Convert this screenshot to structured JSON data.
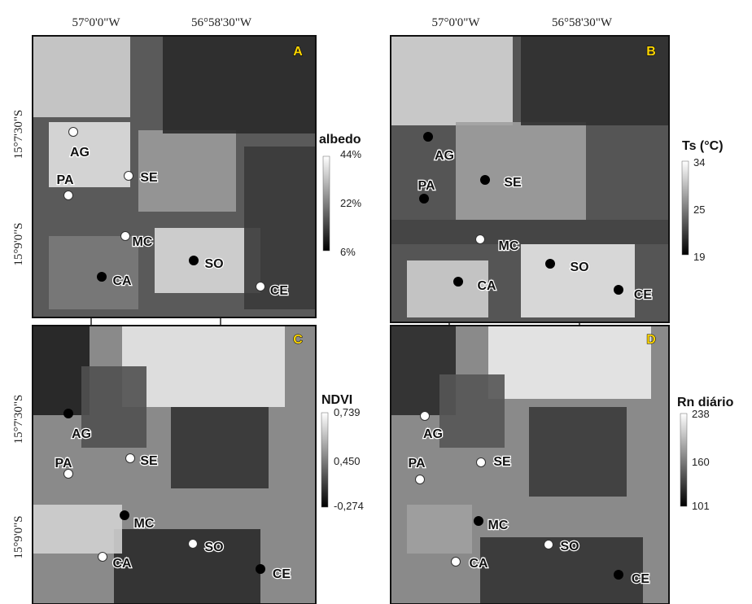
{
  "top_left_longitudes": [
    "57°0'0\"W",
    "56°58'30\"W"
  ],
  "top_right_longitudes": [
    "57°0'0\"W",
    "56°58'30\"W"
  ],
  "upper_latitudes": [
    "15°7'30\"S",
    "15°9'0\"S"
  ],
  "lower_latitudes": [
    "15°7'30\"S",
    "15°9'0\"S"
  ],
  "panels": [
    {
      "letter": "A",
      "legend": {
        "title": "albedo",
        "ticks": [
          "44%",
          "22%",
          "6%"
        ]
      },
      "sites": [
        {
          "label": "AG",
          "marker": "white"
        },
        {
          "label": "PA",
          "marker": "white"
        },
        {
          "label": "SE",
          "marker": "white"
        },
        {
          "label": "MC",
          "marker": "white"
        },
        {
          "label": "CA",
          "marker": "black"
        },
        {
          "label": "SO",
          "marker": "black"
        },
        {
          "label": "CE",
          "marker": "white"
        }
      ]
    },
    {
      "letter": "B",
      "legend": {
        "title": "Ts (°C)",
        "ticks": [
          "34",
          "25",
          "19"
        ]
      },
      "sites": [
        {
          "label": "AG",
          "marker": "black"
        },
        {
          "label": "PA",
          "marker": "black"
        },
        {
          "label": "SE",
          "marker": "black"
        },
        {
          "label": "MC",
          "marker": "white"
        },
        {
          "label": "CA",
          "marker": "black"
        },
        {
          "label": "SO",
          "marker": "black"
        },
        {
          "label": "CE",
          "marker": "black"
        }
      ]
    },
    {
      "letter": "C",
      "legend": {
        "title": "NDVI",
        "ticks": [
          "0,739",
          "0,450",
          "-0,274"
        ]
      },
      "sites": [
        {
          "label": "AG",
          "marker": "black"
        },
        {
          "label": "PA",
          "marker": "white"
        },
        {
          "label": "SE",
          "marker": "white"
        },
        {
          "label": "MC",
          "marker": "black"
        },
        {
          "label": "CA",
          "marker": "white"
        },
        {
          "label": "SO",
          "marker": "white"
        },
        {
          "label": "CE",
          "marker": "black"
        }
      ]
    },
    {
      "letter": "D",
      "legend": {
        "title": "Rn diário",
        "ticks": [
          "238",
          "160",
          "101"
        ]
      },
      "sites": [
        {
          "label": "AG",
          "marker": "white"
        },
        {
          "label": "PA",
          "marker": "white"
        },
        {
          "label": "SE",
          "marker": "white"
        },
        {
          "label": "MC",
          "marker": "black"
        },
        {
          "label": "CA",
          "marker": "white"
        },
        {
          "label": "SO",
          "marker": "white"
        },
        {
          "label": "CE",
          "marker": "black"
        }
      ]
    }
  ]
}
